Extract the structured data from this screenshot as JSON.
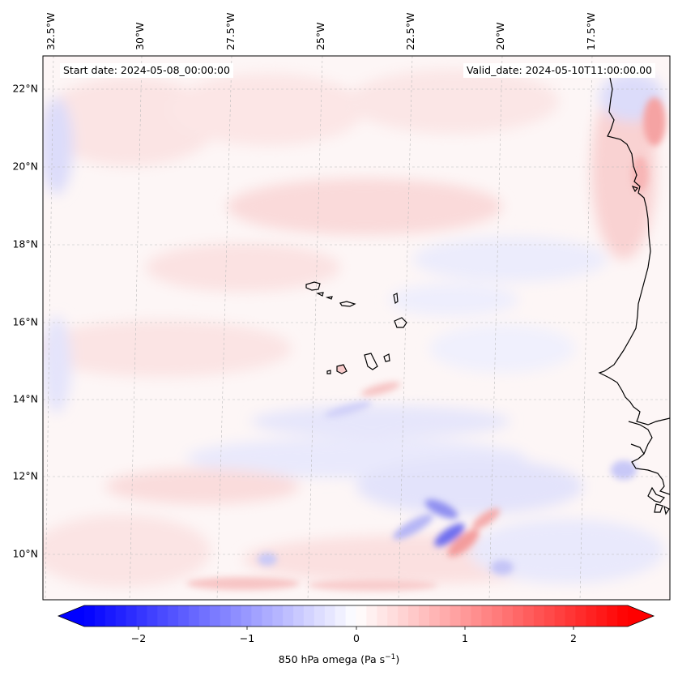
{
  "map": {
    "start_date_text": "Start date: 2024-05-08_00:00:00",
    "valid_date_text": "Valid_date: 2024-05-10T11:00:00.00",
    "longitude_labels": [
      "32.5°W",
      "30°W",
      "27.5°W",
      "25°W",
      "22.5°W",
      "20°W",
      "17.5°W"
    ],
    "latitude_labels": [
      "22°N",
      "20°N",
      "18°N",
      "16°N",
      "14°N",
      "12°N",
      "10°N"
    ],
    "colorbar": {
      "ticks": [
        "−2",
        "−1",
        "0",
        "1",
        "2"
      ],
      "range": [
        -2.6,
        2.6
      ],
      "label_main": "850 hPa omega (Pa s",
      "label_exp": "−1",
      "label_close": ")",
      "colormap": "bwr",
      "min_color": "#0000ff",
      "mid_color": "#ffffff",
      "max_color": "#ff0000"
    },
    "field": "850 hPa omega",
    "coastline_color": "#000000",
    "gridline_color": "#bbbbbb"
  }
}
